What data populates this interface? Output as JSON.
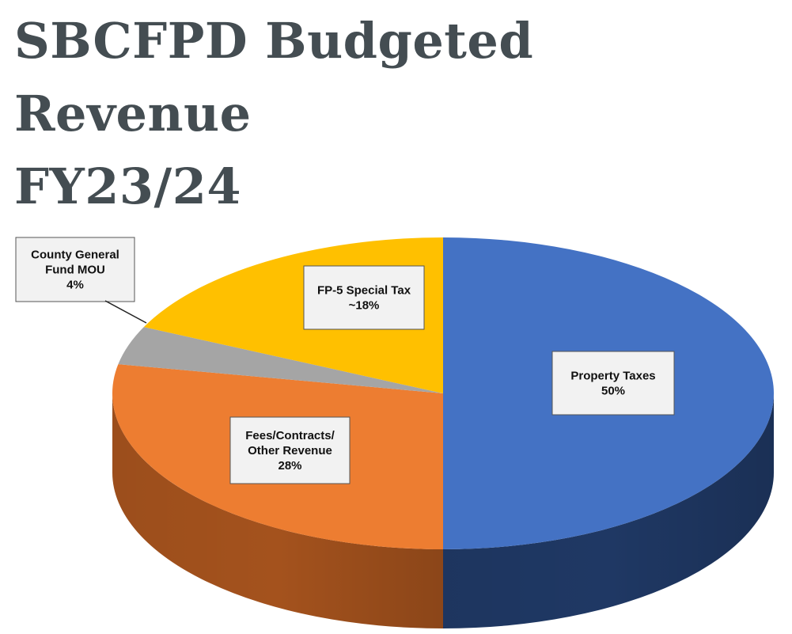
{
  "chart_data": {
    "type": "pie",
    "title_lines": [
      "SBCFPD Budgeted Revenue",
      "FY23/24"
    ],
    "slices": [
      {
        "label_lines": [
          "Property Taxes",
          "50%"
        ],
        "value": 50,
        "color": "#4472c4",
        "side_color": "#1f3864"
      },
      {
        "label_lines": [
          "Fees/Contracts/",
          "Other Revenue",
          "28%"
        ],
        "value": 28,
        "color": "#ed7d31",
        "side_color": "#a4521d"
      },
      {
        "label_lines": [
          "County General",
          "Fund MOU",
          "4%"
        ],
        "value": 4,
        "color": "#a5a5a5",
        "side_color": "#6e6e6e"
      },
      {
        "label_lines": [
          "FP-5 Special Tax",
          "~18%"
        ],
        "value": 18,
        "color": "#ffc000",
        "side_color": "#b38600"
      }
    ],
    "legend": "none"
  }
}
